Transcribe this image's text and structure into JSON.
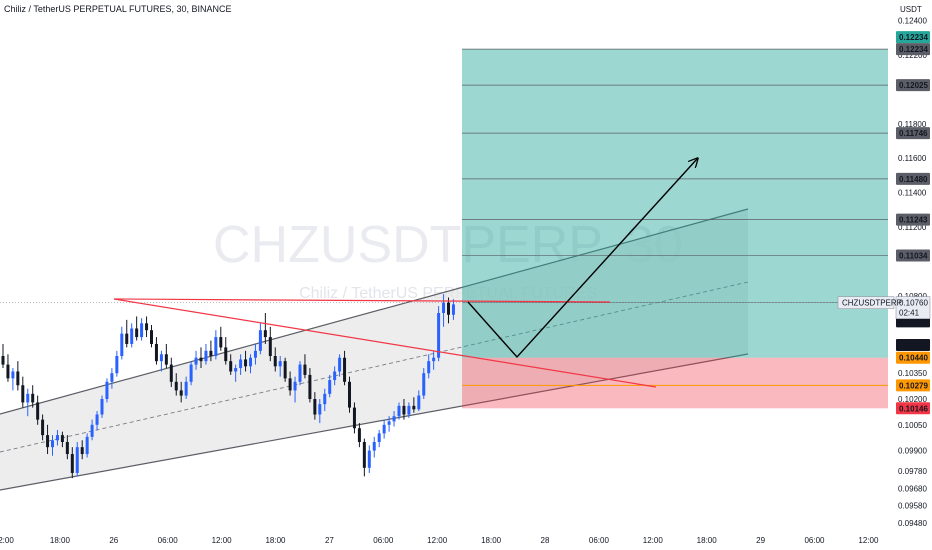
{
  "header": {
    "title": "Chiliz / TetherUS PERPETUAL FUTURES, 30, BINANCE"
  },
  "chart_data": {
    "type": "candlestick",
    "symbol": "CHZUSDTPERP",
    "interval": "30",
    "currency": "USDT",
    "watermark_main": "CHZUSDTPERP, 30",
    "watermark_sub": "Chiliz / TetherUS PERPETUAL FUTURES",
    "ylim": [
      0.0945,
      0.1245
    ],
    "y_ticks": [
      "0.12400",
      "0.12200",
      "0.11800",
      "0.11600",
      "0.11400",
      "0.11200",
      "0.10800",
      "0.10500",
      "0.10350",
      "0.10200",
      "0.10050",
      "0.09900",
      "0.09780",
      "0.09680",
      "0.09580",
      "0.09480"
    ],
    "x_ticks": [
      "2:00",
      "18:00",
      "26",
      "06:00",
      "12:00",
      "18:00",
      "27",
      "06:00",
      "12:00",
      "18:00",
      "28",
      "06:00",
      "12:00",
      "18:00",
      "29",
      "06:00",
      "12:00"
    ],
    "colors": {
      "up": "#2962ff",
      "down": "#131722",
      "profit": "#26a69a",
      "loss": "#f23645",
      "trendline": "#f23645",
      "channel": "#131722"
    },
    "candles": [
      [
        0.1045,
        0.1052,
        0.1038,
        0.104
      ],
      [
        0.104,
        0.1046,
        0.103,
        0.1032
      ],
      [
        0.1032,
        0.1038,
        0.1025,
        0.1036
      ],
      [
        0.1036,
        0.1042,
        0.1025,
        0.1028
      ],
      [
        0.1028,
        0.1033,
        0.1015,
        0.1018
      ],
      [
        0.1018,
        0.1026,
        0.101,
        0.1023
      ],
      [
        0.1023,
        0.1028,
        0.1015,
        0.1018
      ],
      [
        0.1018,
        0.1022,
        0.1005,
        0.1008
      ],
      [
        0.1008,
        0.1011,
        0.0996,
        0.0999
      ],
      [
        0.0999,
        0.1005,
        0.0988,
        0.0992
      ],
      [
        0.0992,
        0.0999,
        0.0987,
        0.0996
      ],
      [
        0.0996,
        0.1002,
        0.0993,
        0.0999
      ],
      [
        0.0999,
        0.1001,
        0.0992,
        0.0995
      ],
      [
        0.0995,
        0.0999,
        0.0985,
        0.0988
      ],
      [
        0.0988,
        0.0992,
        0.0974,
        0.0977
      ],
      [
        0.0977,
        0.0995,
        0.0975,
        0.0992
      ],
      [
        0.0992,
        0.0996,
        0.0985,
        0.0988
      ],
      [
        0.0988,
        0.1,
        0.0986,
        0.0998
      ],
      [
        0.0998,
        0.1008,
        0.0996,
        0.1005
      ],
      [
        0.1005,
        0.1013,
        0.1002,
        0.1011
      ],
      [
        0.1011,
        0.1022,
        0.1009,
        0.102
      ],
      [
        0.102,
        0.1032,
        0.1018,
        0.103
      ],
      [
        0.103,
        0.1038,
        0.1026,
        0.1035
      ],
      [
        0.1035,
        0.1048,
        0.1033,
        0.1045
      ],
      [
        0.1045,
        0.1062,
        0.1043,
        0.1058
      ],
      [
        0.1058,
        0.1066,
        0.105,
        0.1052
      ],
      [
        0.1052,
        0.1064,
        0.105,
        0.1061
      ],
      [
        0.1061,
        0.1068,
        0.1054,
        0.1056
      ],
      [
        0.1056,
        0.1067,
        0.1054,
        0.1064
      ],
      [
        0.1064,
        0.1068,
        0.1056,
        0.106
      ],
      [
        0.106,
        0.1063,
        0.105,
        0.1052
      ],
      [
        0.1052,
        0.1056,
        0.104,
        0.1042
      ],
      [
        0.1042,
        0.1048,
        0.1036,
        0.1046
      ],
      [
        0.1046,
        0.1052,
        0.1038,
        0.104
      ],
      [
        0.104,
        0.1044,
        0.1027,
        0.103
      ],
      [
        0.103,
        0.1035,
        0.1022,
        0.1025
      ],
      [
        0.1025,
        0.103,
        0.1018,
        0.1022
      ],
      [
        0.1022,
        0.1033,
        0.102,
        0.103
      ],
      [
        0.103,
        0.1042,
        0.1028,
        0.104
      ],
      [
        0.104,
        0.1048,
        0.1037,
        0.1044
      ],
      [
        0.1044,
        0.105,
        0.1038,
        0.1042
      ],
      [
        0.1042,
        0.1052,
        0.104,
        0.1048
      ],
      [
        0.1048,
        0.1054,
        0.1042,
        0.1045
      ],
      [
        0.1045,
        0.106,
        0.1043,
        0.1056
      ],
      [
        0.1056,
        0.1062,
        0.1048,
        0.105
      ],
      [
        0.105,
        0.1056,
        0.104,
        0.1042
      ],
      [
        0.1042,
        0.1046,
        0.1034,
        0.1036
      ],
      [
        0.1036,
        0.104,
        0.103,
        0.1038
      ],
      [
        0.1038,
        0.1046,
        0.1034,
        0.1043
      ],
      [
        0.1043,
        0.1048,
        0.1036,
        0.1039
      ],
      [
        0.1039,
        0.1046,
        0.1035,
        0.1044
      ],
      [
        0.1044,
        0.1052,
        0.104,
        0.1048
      ],
      [
        0.1048,
        0.1064,
        0.1046,
        0.106
      ],
      [
        0.106,
        0.107,
        0.1052,
        0.1056
      ],
      [
        0.1056,
        0.1062,
        0.1042,
        0.1045
      ],
      [
        0.1045,
        0.105,
        0.1036,
        0.1039
      ],
      [
        0.1039,
        0.1045,
        0.1033,
        0.1042
      ],
      [
        0.1042,
        0.1044,
        0.103,
        0.1032
      ],
      [
        0.1032,
        0.1036,
        0.1022,
        0.1025
      ],
      [
        0.1025,
        0.1033,
        0.1018,
        0.103
      ],
      [
        0.103,
        0.1042,
        0.1028,
        0.104
      ],
      [
        0.104,
        0.1046,
        0.1032,
        0.1034
      ],
      [
        0.1034,
        0.1038,
        0.1018,
        0.102
      ],
      [
        0.102,
        0.1024,
        0.1008,
        0.1011
      ],
      [
        0.1011,
        0.102,
        0.1006,
        0.1017
      ],
      [
        0.1017,
        0.1026,
        0.1013,
        0.1023
      ],
      [
        0.1023,
        0.1034,
        0.1021,
        0.1031
      ],
      [
        0.1031,
        0.1039,
        0.1028,
        0.1036
      ],
      [
        0.1036,
        0.1046,
        0.1033,
        0.1044
      ],
      [
        0.1044,
        0.1048,
        0.1028,
        0.103
      ],
      [
        0.103,
        0.1033,
        0.1012,
        0.1015
      ],
      [
        0.1015,
        0.1018,
        0.1,
        0.1003
      ],
      [
        0.1003,
        0.1006,
        0.0992,
        0.0995
      ],
      [
        0.0995,
        0.0997,
        0.0975,
        0.098
      ],
      [
        0.098,
        0.0993,
        0.0977,
        0.099
      ],
      [
        0.099,
        0.0998,
        0.0986,
        0.0995
      ],
      [
        0.0995,
        0.1002,
        0.0992,
        0.1
      ],
      [
        0.1,
        0.1008,
        0.0997,
        0.1005
      ],
      [
        0.1005,
        0.101,
        0.1001,
        0.1007
      ],
      [
        0.1007,
        0.1013,
        0.1004,
        0.101
      ],
      [
        0.101,
        0.1018,
        0.1008,
        0.1016
      ],
      [
        0.1016,
        0.102,
        0.1008,
        0.1011
      ],
      [
        0.1011,
        0.1018,
        0.1009,
        0.1016
      ],
      [
        0.1016,
        0.1021,
        0.1012,
        0.1014
      ],
      [
        0.1014,
        0.1025,
        0.1013,
        0.1022
      ],
      [
        0.1022,
        0.1038,
        0.102,
        0.1035
      ],
      [
        0.1035,
        0.1046,
        0.1032,
        0.1042
      ],
      [
        0.1042,
        0.1048,
        0.1037,
        0.1044
      ],
      [
        0.1044,
        0.1074,
        0.1042,
        0.107
      ],
      [
        0.107,
        0.1081,
        0.1062,
        0.1076
      ],
      [
        0.1076,
        0.1079,
        0.1064,
        0.1069
      ],
      [
        0.1069,
        0.1078,
        0.1066,
        0.1075
      ]
    ],
    "long_position": {
      "targets": [
        "0.12234",
        "0.12025",
        "0.11746",
        "0.11480",
        "0.11243",
        "0.11034",
        "0.10760"
      ],
      "entry": "0.10440",
      "entry2": "0.10279",
      "stop": "0.10146",
      "upper_label": "0.12234"
    },
    "current": {
      "symbol_label": "CHZUSDTPERP",
      "price": "0.10760",
      "countdown": "02:41"
    },
    "level_labels": {
      "resistance": "0.10750",
      "mid": "0.10595"
    }
  }
}
